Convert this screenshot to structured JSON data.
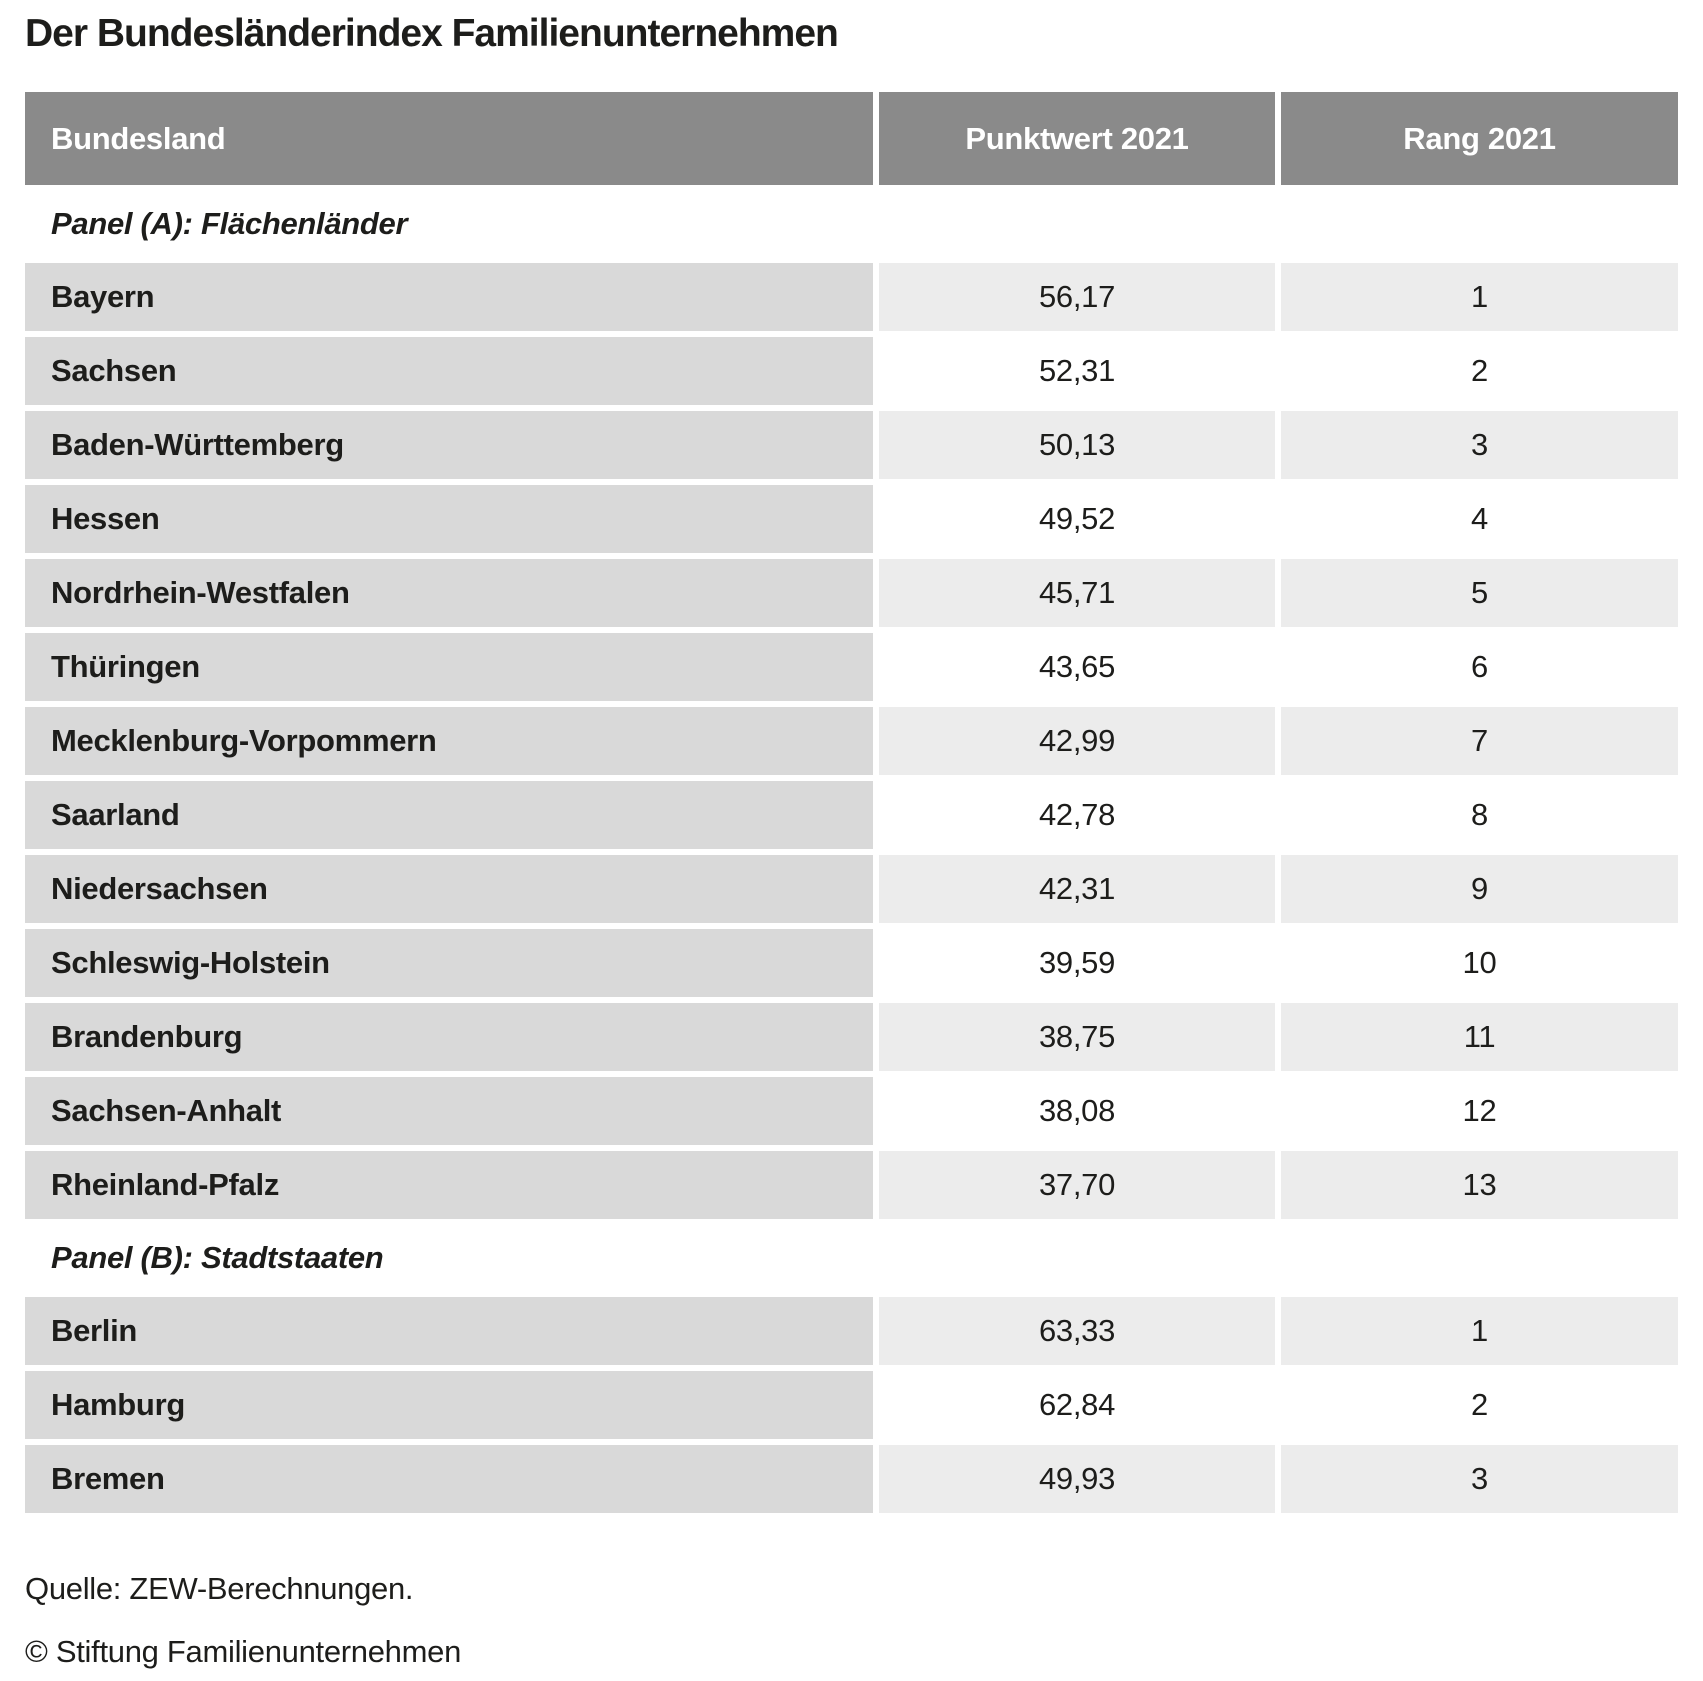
{
  "title": "Der Bundesländerindex Familienunternehmen",
  "chart_data": {
    "type": "table",
    "title": "Der Bundesländerindex Familienunternehmen",
    "columns": [
      "Bundesland",
      "Punktwert 2021",
      "Rang 2021"
    ],
    "panels": [
      {
        "label": "Panel (A): Flächenländer",
        "rows": [
          [
            "Bayern",
            "56,17",
            "1"
          ],
          [
            "Sachsen",
            "52,31",
            "2"
          ],
          [
            "Baden-Württemberg",
            "50,13",
            "3"
          ],
          [
            "Hessen",
            "49,52",
            "4"
          ],
          [
            "Nordrhein-Westfalen",
            "45,71",
            "5"
          ],
          [
            "Thüringen",
            "43,65",
            "6"
          ],
          [
            "Mecklenburg-Vorpommern",
            "42,99",
            "7"
          ],
          [
            "Saarland",
            "42,78",
            "8"
          ],
          [
            "Niedersachsen",
            "42,31",
            "9"
          ],
          [
            "Schleswig-Holstein",
            "39,59",
            "10"
          ],
          [
            "Brandenburg",
            "38,75",
            "11"
          ],
          [
            "Sachsen-Anhalt",
            "38,08",
            "12"
          ],
          [
            "Rheinland-Pfalz",
            "37,70",
            "13"
          ]
        ]
      },
      {
        "label": "Panel (B): Stadtstaaten",
        "rows": [
          [
            "Berlin",
            "63,33",
            "1"
          ],
          [
            "Hamburg",
            "62,84",
            "2"
          ],
          [
            "Bremen",
            "49,93",
            "3"
          ]
        ]
      }
    ]
  },
  "footer": {
    "source": "Quelle: ZEW-Berechnungen.",
    "copyright": "© Stiftung Familienunternehmen"
  },
  "colors": {
    "header_bg": "#8a8a8a",
    "header_text": "#ffffff",
    "name_cell_bg": "#d9d9d9",
    "value_cell_shaded_bg": "#ececec",
    "value_cell_plain_bg": "#ffffff",
    "text": "#1d1d1b"
  }
}
